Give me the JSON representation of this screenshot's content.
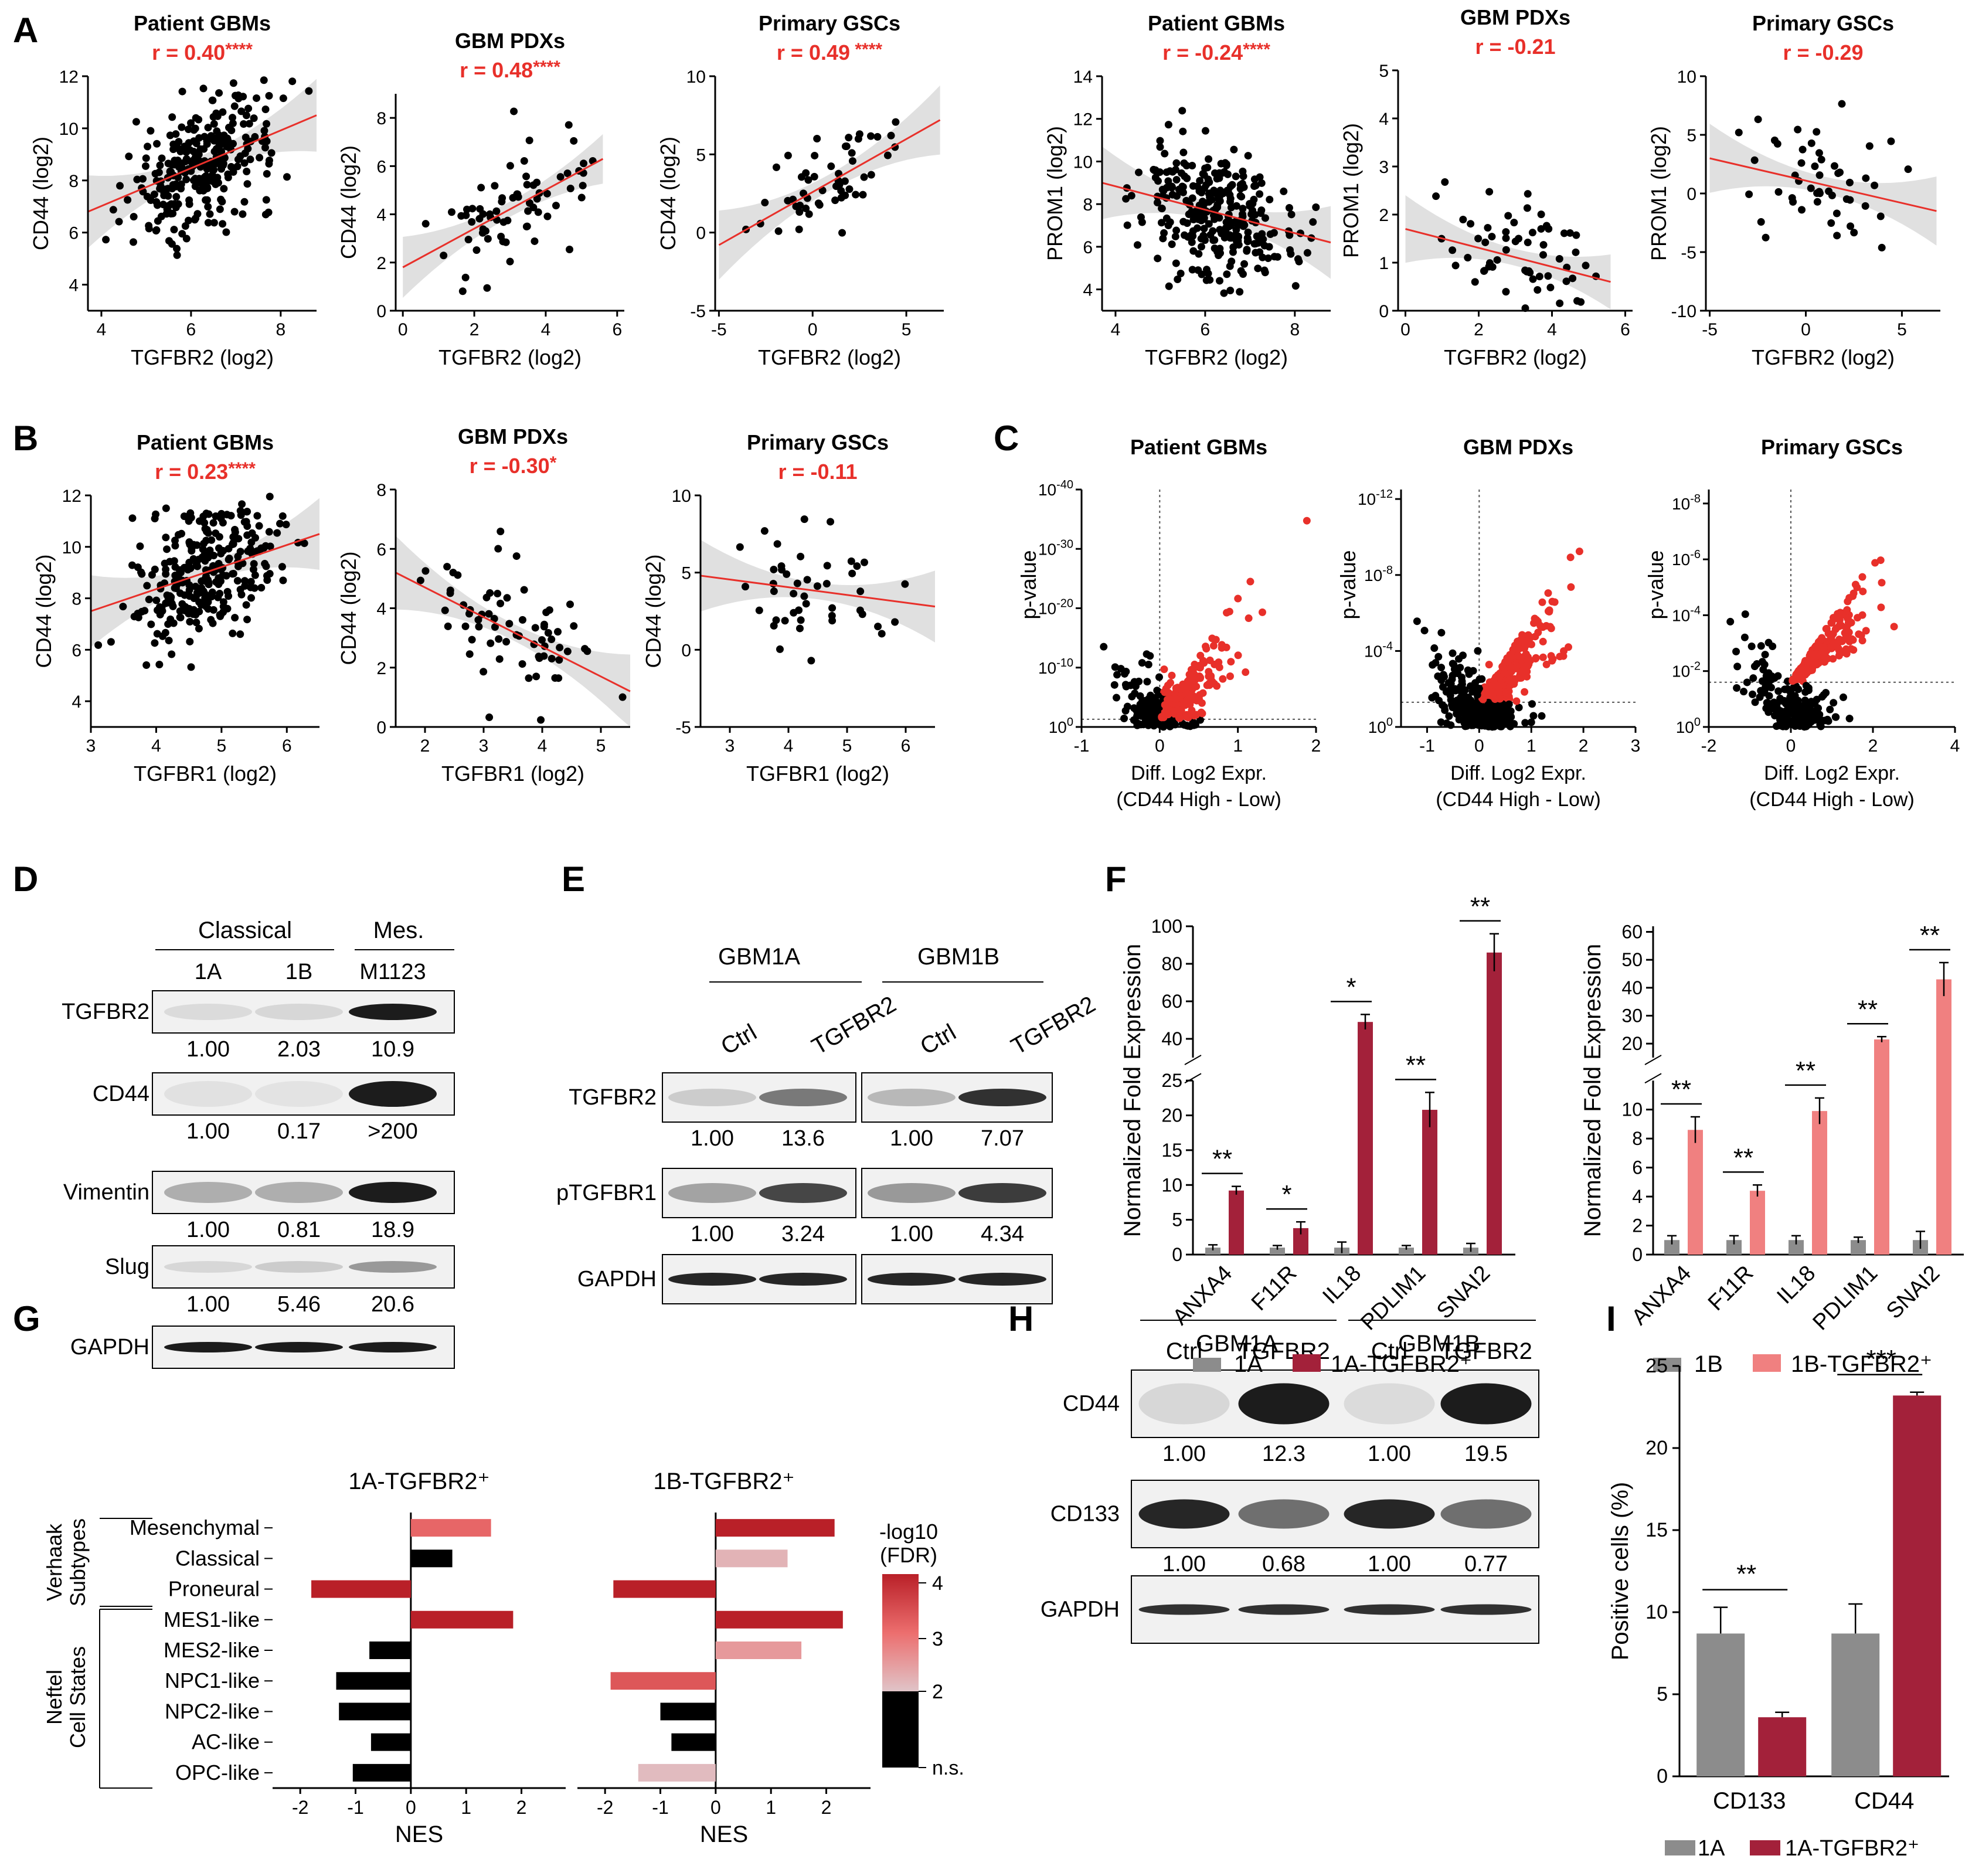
{
  "colors": {
    "red": "#e8302a",
    "dark_red": "#a3213a",
    "pink": "#f08080",
    "grey": "#8c8c8c",
    "black": "#111111",
    "band": "#d6d6d6"
  },
  "panel_letters": [
    "A",
    "B",
    "C",
    "D",
    "E",
    "F",
    "G",
    "H",
    "I"
  ],
  "chart_data": [
    {
      "panel": "A",
      "type": "scatter",
      "title": "Patient GBMs",
      "r_label": "r = 0.40",
      "stars": "****",
      "xlabel": "TGFBR2 (log2)",
      "ylabel": "CD44 (log2)",
      "xlim": [
        3.7,
        8.8
      ],
      "ylim": [
        3,
        12
      ],
      "xticks": [
        4,
        6,
        8
      ],
      "yticks": [
        4,
        6,
        8,
        10,
        12
      ],
      "fit": [
        [
          3.7,
          6.8
        ],
        [
          8.8,
          10.5
        ]
      ],
      "n_points": 300
    },
    {
      "panel": "A",
      "type": "scatter",
      "title": "GBM PDXs",
      "r_label": "r = 0.48",
      "stars": "****",
      "xlabel": "TGFBR2 (log2)",
      "ylabel": "CD44 (log2)",
      "xlim": [
        -0.2,
        6.2
      ],
      "ylim": [
        0,
        9
      ],
      "xticks": [
        0,
        2,
        4,
        6
      ],
      "yticks": [
        0,
        2,
        4,
        6,
        8
      ],
      "fit": [
        [
          0,
          1.8
        ],
        [
          5.6,
          6.3
        ]
      ],
      "n_points": 70
    },
    {
      "panel": "A",
      "type": "scatter",
      "title": "Primary GSCs",
      "r_label": "r = 0.49",
      "stars": " ****",
      "xlabel": "TGFBR2 (log2)",
      "ylabel": "CD44 (log2)",
      "xlim": [
        -5.2,
        7
      ],
      "ylim": [
        -5,
        10
      ],
      "xticks": [
        -5,
        0,
        5
      ],
      "yticks": [
        -5,
        0,
        5,
        10
      ],
      "fit": [
        [
          -5,
          -0.8
        ],
        [
          6.8,
          7.2
        ]
      ],
      "n_points": 55
    },
    {
      "panel": "A",
      "type": "scatter",
      "title": "Patient GBMs",
      "r_label": "r = -0.24",
      "stars": "****",
      "xlabel": "TGFBR2 (log2)",
      "ylabel": "PROM1 (log2)",
      "xlim": [
        3.7,
        8.8
      ],
      "ylim": [
        3,
        14
      ],
      "xticks": [
        4,
        6,
        8
      ],
      "yticks": [
        4,
        6,
        8,
        10,
        12,
        14
      ],
      "fit": [
        [
          3.7,
          9
        ],
        [
          8.8,
          6.2
        ]
      ],
      "n_points": 300
    },
    {
      "panel": "A",
      "type": "scatter",
      "title": "GBM PDXs",
      "r_label": "r = -0.21",
      "stars": "",
      "xlabel": "TGFBR2 (log2)",
      "ylabel": "PROM1 (log2)",
      "xlim": [
        -0.2,
        6.2
      ],
      "ylim": [
        0,
        5
      ],
      "xticks": [
        0,
        2,
        4,
        6
      ],
      "yticks": [
        0,
        1,
        2,
        3,
        4,
        5
      ],
      "fit": [
        [
          0,
          1.7
        ],
        [
          5.6,
          0.6
        ]
      ],
      "n_points": 70
    },
    {
      "panel": "A",
      "type": "scatter",
      "title": "Primary GSCs",
      "r_label": "r = -0.29",
      "stars": "",
      "xlabel": "TGFBR2 (log2)",
      "ylabel": "PROM1 (log2)",
      "xlim": [
        -5.2,
        7
      ],
      "ylim": [
        -10,
        10
      ],
      "xticks": [
        -5,
        0,
        5
      ],
      "yticks": [
        -10,
        -5,
        0,
        5,
        10
      ],
      "fit": [
        [
          -5,
          3
        ],
        [
          6.8,
          -1.5
        ]
      ],
      "n_points": 50
    },
    {
      "panel": "B",
      "type": "scatter",
      "title": "Patient GBMs",
      "r_label": "r = 0.23",
      "stars": "****",
      "xlabel": "TGFBR1 (log2)",
      "ylabel": "CD44 (log2)",
      "xlim": [
        3,
        6.5
      ],
      "ylim": [
        3,
        12
      ],
      "xticks": [
        3,
        4,
        5,
        6
      ],
      "yticks": [
        4,
        6,
        8,
        10,
        12
      ],
      "fit": [
        [
          3,
          7.5
        ],
        [
          6.5,
          10.5
        ]
      ],
      "n_points": 300
    },
    {
      "panel": "B",
      "type": "scatter",
      "title": "GBM PDXs",
      "r_label": "r = -0.30",
      "stars": "*",
      "xlabel": "TGFBR1 (log2)",
      "ylabel": "CD44 (log2)",
      "xlim": [
        1.5,
        5.5
      ],
      "ylim": [
        0,
        8
      ],
      "xticks": [
        2,
        3,
        4,
        5
      ],
      "yticks": [
        0,
        2,
        4,
        6,
        8
      ],
      "fit": [
        [
          1.5,
          5.2
        ],
        [
          5.5,
          1.2
        ]
      ],
      "n_points": 70
    },
    {
      "panel": "B",
      "type": "scatter",
      "title": "Primary GSCs",
      "r_label": "r = -0.11",
      "stars": "",
      "xlabel": "TGFBR1 (log2)",
      "ylabel": "CD44 (log2)",
      "xlim": [
        2.5,
        6.5
      ],
      "ylim": [
        -5,
        10
      ],
      "xticks": [
        3,
        4,
        5,
        6
      ],
      "yticks": [
        -5,
        0,
        5,
        10
      ],
      "fit": [
        [
          2.5,
          4.8
        ],
        [
          6.5,
          2.8
        ]
      ],
      "n_points": 45
    },
    {
      "panel": "C",
      "type": "volcano",
      "title": "Patient GBMs",
      "xlabel": "Diff. Log2 Expr.",
      "xlabel2": "(CD44 High - Low)",
      "ylabel": "p-value",
      "xlim": [
        -1,
        2
      ],
      "xticks": [
        -1,
        0,
        1,
        2
      ],
      "ymax_exp": 40,
      "yticks_exp": [
        0,
        10,
        20,
        30,
        40
      ],
      "threshold_exp": 1.3,
      "n_points": 420
    },
    {
      "panel": "C",
      "type": "volcano",
      "title": "GBM PDXs",
      "xlabel": "Diff. Log2 Expr.",
      "xlabel2": "(CD44 High - Low)",
      "ylabel": "p-value",
      "xlim": [
        -1.5,
        3
      ],
      "xticks": [
        -1,
        0,
        1,
        2,
        3
      ],
      "ymax_exp": 12.5,
      "yticks_exp": [
        0,
        4,
        8,
        12
      ],
      "threshold_exp": 1.3,
      "n_points": 600
    },
    {
      "panel": "C",
      "type": "volcano",
      "title": "Primary GSCs",
      "xlabel": "Diff. Log2 Expr.",
      "xlabel2": "(CD44 High - Low)",
      "ylabel": "p-value",
      "xlim": [
        -2,
        4
      ],
      "xticks": [
        -2,
        0,
        2,
        4
      ],
      "ymax_exp": 8.5,
      "yticks_exp": [
        0,
        2,
        4,
        6,
        8
      ],
      "threshold_exp": 1.6,
      "n_points": 420
    },
    {
      "panel": "F",
      "type": "bar",
      "ylabel": "Normalized Fold Expression",
      "categories": [
        "ANXA4",
        "F11R",
        "IL18",
        "PDLIM1",
        "SNAI2"
      ],
      "series": [
        {
          "name": "1A",
          "values": [
            1,
            1,
            1,
            1,
            1
          ],
          "errors": [
            0.4,
            0.3,
            0.8,
            0.3,
            0.6
          ]
        },
        {
          "name": "1A-TGFBR2⁺",
          "values": [
            9.2,
            3.8,
            49,
            20.8,
            86
          ],
          "errors": [
            0.6,
            0.9,
            4,
            2.5,
            10
          ]
        }
      ],
      "sig": [
        "**",
        "*",
        "*",
        "**",
        "**"
      ],
      "low_range": [
        0,
        25
      ],
      "low_ticks": [
        0,
        5,
        10,
        15,
        20,
        25
      ],
      "high_range": [
        30,
        100
      ],
      "high_ticks": [
        40,
        60,
        80,
        100
      ],
      "legend": [
        "1A",
        "1A-TGFBR2⁺"
      ]
    },
    {
      "panel": "F",
      "type": "bar",
      "ylabel": "Normalized Fold Expression",
      "categories": [
        "ANXA4",
        "F11R",
        "IL18",
        "PDLIM1",
        "SNAI2"
      ],
      "series": [
        {
          "name": "1B",
          "values": [
            1,
            1,
            1,
            1,
            1
          ],
          "errors": [
            0.3,
            0.3,
            0.3,
            0.2,
            0.6
          ]
        },
        {
          "name": "1B-TGFBR2⁺",
          "values": [
            8.6,
            4.4,
            9.9,
            21.5,
            43
          ],
          "errors": [
            0.9,
            0.4,
            0.9,
            1,
            6
          ]
        }
      ],
      "sig": [
        "**",
        "**",
        "**",
        "**",
        "**"
      ],
      "low_range": [
        0,
        12
      ],
      "low_ticks": [
        0,
        2,
        4,
        6,
        8,
        10
      ],
      "high_range": [
        15,
        62
      ],
      "high_ticks": [
        20,
        30,
        40,
        50,
        60
      ],
      "legend": [
        "1B",
        "1B-TGFBR2⁺"
      ]
    },
    {
      "panel": "G",
      "type": "bar",
      "orientation": "horizontal",
      "title": "1A-TGFBR2⁺",
      "xlabel": "NES",
      "xlim": [
        -2.5,
        2.8
      ],
      "xticks": [
        -2,
        -1,
        0,
        1,
        2
      ],
      "rows": [
        "Mesenchymal",
        "Classical",
        "Proneural",
        "MES1-like",
        "MES2-like",
        "NPC1-like",
        "NPC2-like",
        "AC-like",
        "OPC-like"
      ],
      "values": [
        1.45,
        0.75,
        -1.8,
        1.85,
        -0.75,
        -1.35,
        -1.3,
        -0.72,
        -1.05
      ],
      "fdr": [
        3.1,
        0,
        4,
        4,
        0,
        0,
        0,
        0,
        0
      ]
    },
    {
      "panel": "G",
      "type": "bar",
      "orientation": "horizontal",
      "title": "1B-TGFBR2⁺",
      "xlabel": "NES",
      "xlim": [
        -2.5,
        2.8
      ],
      "xticks": [
        -2,
        -1,
        0,
        1,
        2
      ],
      "rows": [
        "Mesenchymal",
        "Classical",
        "Proneural",
        "MES1-like",
        "MES2-like",
        "NPC1-like",
        "NPC2-like",
        "AC-like",
        "OPC-like"
      ],
      "values": [
        2.15,
        1.3,
        -1.85,
        2.3,
        1.55,
        -1.9,
        -1,
        -0.8,
        -1.4
      ],
      "fdr": [
        4,
        2.2,
        4,
        4,
        2.5,
        3.3,
        0,
        0,
        2.1
      ]
    },
    {
      "panel": "I",
      "type": "bar",
      "ylabel": "Positive cells (%)",
      "categories": [
        "CD133",
        "CD44"
      ],
      "series": [
        {
          "name": "1A",
          "values": [
            8.7,
            8.7
          ],
          "errors": [
            1.6,
            1.8
          ]
        },
        {
          "name": "1A-TGFBR2⁺",
          "values": [
            3.6,
            23.2
          ],
          "errors": [
            0.3,
            0.2
          ]
        }
      ],
      "ylim": [
        0,
        25
      ],
      "yticks": [
        0,
        5,
        10,
        15,
        20,
        25
      ],
      "sig": [
        "**",
        "***"
      ],
      "legend": [
        "1A",
        "1A-TGFBR2⁺"
      ]
    }
  ],
  "heat_legend": {
    "title_line1": "-log10",
    "title_line2": "(FDR)",
    "ticks": [
      "4",
      "3",
      "2",
      "n.s."
    ]
  },
  "G_groups": {
    "verhaak": [
      "Verhaak",
      "Subtypes"
    ],
    "neftel": [
      "Neftel",
      "Cell States"
    ]
  },
  "blot_D": {
    "header_group1": "Classical",
    "header_group2": "Mes.",
    "lanes": [
      "1A",
      "1B",
      "M1123"
    ],
    "rows": [
      {
        "label": "TGFBR2",
        "quant": [
          "1.00",
          "2.03",
          "10.9"
        ],
        "intensity": [
          0.08,
          0.1,
          1
        ]
      },
      {
        "label": "CD44",
        "quant": [
          "1.00",
          "0.17",
          ">200"
        ],
        "intensity": [
          0.05,
          0.04,
          1
        ]
      },
      {
        "label": "Vimentin",
        "quant": [
          "1.00",
          "0.81",
          "18.9"
        ],
        "intensity": [
          0.3,
          0.3,
          1
        ]
      },
      {
        "label": "Slug",
        "quant": [
          "1.00",
          "5.46",
          "20.6"
        ],
        "intensity": [
          0.1,
          0.15,
          0.4
        ]
      },
      {
        "label": "GAPDH",
        "quant": null,
        "intensity": [
          1,
          1,
          1
        ]
      }
    ]
  },
  "blot_E": {
    "groups": [
      "GBM1A",
      "GBM1B"
    ],
    "lanes": [
      "Ctrl",
      "TGFBR2",
      "Ctrl",
      "TGFBR2"
    ],
    "rows": [
      {
        "label": "TGFBR2",
        "quant": [
          "1.00",
          "13.6",
          "1.00",
          "7.07"
        ],
        "intensity": [
          0.15,
          0.55,
          0.25,
          0.9
        ]
      },
      {
        "label": "pTGFBR1",
        "quant": [
          "1.00",
          "3.24",
          "1.00",
          "4.34"
        ],
        "intensity": [
          0.35,
          0.8,
          0.4,
          0.85
        ]
      },
      {
        "label": "GAPDH",
        "quant": null,
        "intensity": [
          0.95,
          0.95,
          0.95,
          0.95
        ]
      }
    ]
  },
  "blot_H": {
    "groups": [
      "GBM1A",
      "GBM1B"
    ],
    "lanes": [
      "Ctrl",
      "TGFBR2",
      "Ctrl",
      "TGFBR2"
    ],
    "rows": [
      {
        "label": "CD44",
        "quant": [
          "1.00",
          "12.3",
          "1.00",
          "19.5"
        ],
        "intensity": [
          0.1,
          1,
          0.08,
          1
        ]
      },
      {
        "label": "CD133",
        "quant": [
          "1.00",
          "0.68",
          "1.00",
          "0.77"
        ],
        "intensity": [
          0.95,
          0.6,
          0.95,
          0.6
        ]
      },
      {
        "label": "GAPDH",
        "quant": null,
        "intensity": [
          0.9,
          0.9,
          0.9,
          0.9
        ]
      }
    ]
  }
}
